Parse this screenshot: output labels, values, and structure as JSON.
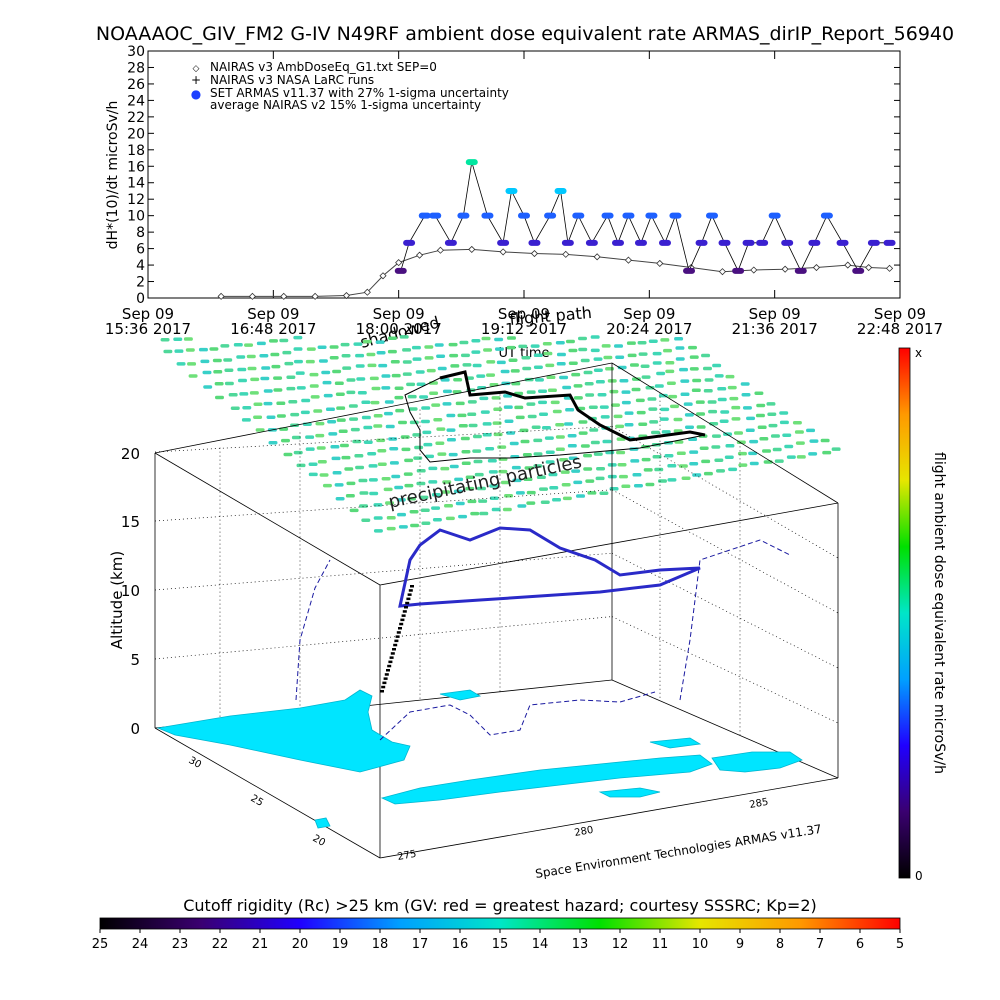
{
  "colors": {
    "armas_symbol": "#1e40ff",
    "nairas_line": "#444444",
    "land": "#00e5ff",
    "cloud": "#4ddc6a",
    "dose_scale": [
      "#000000",
      "#3a0070",
      "#2000ff",
      "#00a0ff",
      "#00e6c8",
      "#00e000",
      "#e6e600",
      "#ff9900",
      "#ff0000"
    ],
    "rigidity_scale": [
      "#000000",
      "#3a0070",
      "#2000ff",
      "#00a0ff",
      "#00e6c8",
      "#00e000",
      "#e6e600",
      "#ff9900",
      "#ff0000"
    ]
  },
  "top_chart": {
    "title": "NOAAAOC_GIV_FM2 G-IV   N49RF  ambient dose equivalent rate ARMAS_dirIP_Report_56940",
    "ylabel": "dH*(10)/dt microSv/h",
    "xlabel": "UT time",
    "legend": [
      {
        "symbol": "◇",
        "text": "NAIRAS v3 AmbDoseEq_G1.txt SEP=0"
      },
      {
        "symbol": "+",
        "text": "NAIRAS v3 NASA LaRC runs"
      },
      {
        "symbol": "●",
        "text": "SET ARMAS v11.37 with 27% 1-sigma uncertainty"
      },
      {
        "symbol": "",
        "text": "average NAIRAS v2 15% 1-sigma uncertainty"
      }
    ],
    "annotation": "Sep 09 19:12 2017",
    "overlay_words": [
      "shadowed",
      "flight path"
    ],
    "x_ticks": [
      {
        "date": "Sep 09",
        "time": "15:36 2017"
      },
      {
        "date": "Sep 09",
        "time": "16:48 2017"
      },
      {
        "date": "Sep 09",
        "time": "18:00 2017"
      },
      {
        "date": "Sep 09",
        "time": "19:12 2017"
      },
      {
        "date": "Sep 09",
        "time": "20:24 2017"
      },
      {
        "date": "Sep 09",
        "time": "21:36 2017"
      },
      {
        "date": "Sep 09",
        "time": "22:48 2017"
      }
    ],
    "y_ticks": [
      "0",
      "2",
      "4",
      "6",
      "8",
      "10",
      "12",
      "14",
      "16",
      "18",
      "20",
      "22",
      "24",
      "26",
      "28",
      "30"
    ]
  },
  "chart_data": [
    {
      "type": "scatter",
      "title": "NOAAAOC_GIV_FM2 G-IV   N49RF  ambient dose equivalent rate ARMAS_dirIP_Report_56940",
      "xlabel": "UT time",
      "ylabel": "dH*(10)/dt microSv/h",
      "x_unit": "UT hours, Sep 09 2017",
      "xlim": [
        15.6,
        22.8
      ],
      "ylim": [
        0,
        30
      ],
      "grid": false,
      "legend_position": "top-left",
      "series": [
        {
          "name": "NAIRAS v3 AmbDoseEq_G1.txt SEP=0",
          "x": [
            16.3,
            16.6,
            16.9,
            17.2,
            17.5,
            17.7,
            17.85,
            18.0,
            18.2,
            18.4,
            18.7,
            19.0,
            19.3,
            19.6,
            19.9,
            20.2,
            20.5,
            20.8,
            21.1,
            21.4,
            21.7,
            22.0,
            22.3,
            22.5,
            22.7
          ],
          "y": [
            0.2,
            0.2,
            0.2,
            0.2,
            0.3,
            0.7,
            2.7,
            4.3,
            5.2,
            5.8,
            5.9,
            5.6,
            5.4,
            5.3,
            5.0,
            4.6,
            4.2,
            3.7,
            3.2,
            3.4,
            3.5,
            3.7,
            4.0,
            3.7,
            3.6
          ]
        },
        {
          "name": "SET ARMAS v11.37 with 27% 1-sigma uncertainty",
          "x": [
            18.02,
            18.1,
            18.25,
            18.35,
            18.5,
            18.62,
            18.7,
            18.85,
            19.0,
            19.08,
            19.2,
            19.3,
            19.45,
            19.55,
            19.62,
            19.72,
            19.85,
            20.0,
            20.1,
            20.2,
            20.32,
            20.42,
            20.55,
            20.65,
            20.78,
            20.9,
            21.0,
            21.12,
            21.25,
            21.35,
            21.48,
            21.6,
            21.72,
            21.85,
            21.98,
            22.1,
            22.25,
            22.4,
            22.55,
            22.7
          ],
          "y": [
            3.3,
            6.7,
            10,
            10,
            6.7,
            10,
            16.5,
            10,
            6.7,
            13,
            10,
            6.7,
            10,
            13,
            6.7,
            10,
            6.7,
            10,
            6.7,
            10,
            6.7,
            10,
            6.7,
            10,
            3.3,
            6.7,
            10,
            6.7,
            3.3,
            6.7,
            6.7,
            10,
            6.7,
            3.3,
            6.7,
            10,
            6.7,
            3.3,
            6.7,
            6.7
          ]
        }
      ]
    },
    {
      "type": "scatter",
      "title": "",
      "xlabel": "",
      "ylabel": "Altitude (km)",
      "zlim": [
        0,
        20
      ],
      "z_ticks": [
        "0",
        "5",
        "10",
        "15",
        "20"
      ],
      "lat_ticks": [
        "20",
        "25",
        "30"
      ],
      "lon_ticks": [
        "275",
        "280",
        "285"
      ],
      "annotations": [
        "precipitating particles",
        "Space Environment Technologies ARMAS v11.37"
      ],
      "series": [
        {
          "name": "flight ambient dose equivalent rate microSv/h",
          "colorbar_max": "x",
          "colorbar_min": "0"
        }
      ]
    }
  ],
  "colorbar_right": {
    "label": "flight ambient dose equivalent rate microSv/h",
    "top": "x",
    "bottom": "0"
  },
  "colorbar_bottom": {
    "label": "Cutoff rigidity (Rc) >25 km (GV: red = greatest hazard; courtesy SSSRC; Kp=2)",
    "ticks": [
      "25",
      "24",
      "23",
      "22",
      "21",
      "20",
      "19",
      "18",
      "17",
      "16",
      "15",
      "14",
      "13",
      "12",
      "11",
      "10",
      "9",
      "8",
      "7",
      "6",
      "5"
    ]
  },
  "panel3d": {
    "ylabel": "Altitude (km)",
    "z_ticks": [
      "0",
      "5",
      "10",
      "15",
      "20"
    ],
    "lat_ticks": [
      "20",
      "25",
      "30"
    ],
    "lon_ticks": [
      "275",
      "280",
      "285"
    ],
    "annotation": "precipitating particles",
    "credit": "Space Environment Technologies ARMAS v11.37"
  }
}
